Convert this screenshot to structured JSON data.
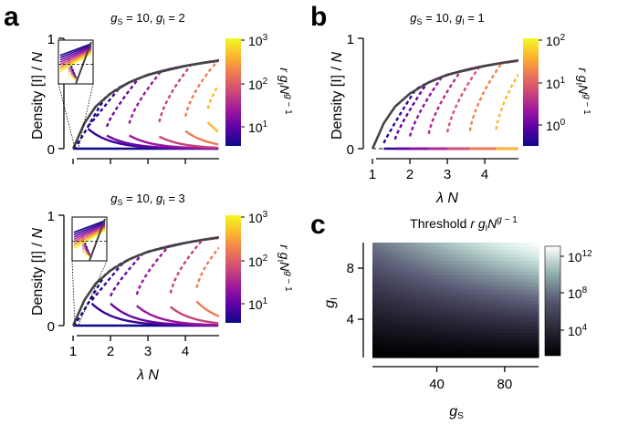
{
  "panel_labels": {
    "a": "a",
    "b": "b",
    "c": "c"
  },
  "shared": {
    "xlabel": "λ N",
    "ylabel": "Density [I] / N",
    "colorbar_label": "r g_I N^(g−1)",
    "colormap": [
      "#0d0887",
      "#5c01a6",
      "#9c179e",
      "#cc4778",
      "#ed7953",
      "#fdb42f",
      "#f0f921"
    ],
    "colors": {
      "threshold_curve": "#444444",
      "stable_line": "solid",
      "unstable_line": "dashed"
    }
  },
  "chart_data": [
    {
      "id": "a-top",
      "type": "line",
      "title": "g_S = 10, g_I = 2",
      "xlabel": "",
      "ylabel": "Density [I] / N",
      "xlim": [
        0.95,
        4.9
      ],
      "ylim": [
        0,
        1
      ],
      "xticks": [
        1,
        2,
        3,
        4
      ],
      "xtick_labels": [
        "",
        "",
        "",
        ""
      ],
      "yticks": [
        0,
        1
      ],
      "ytick_labels": [
        "0",
        "1"
      ],
      "colorbar": {
        "log": true,
        "range": [
          3,
          1000
        ],
        "ticks": [
          10,
          100,
          1000
        ],
        "tick_labels": [
          "10^1",
          "10^2",
          "10^3"
        ],
        "label": "r g_I N^(g−1)"
      },
      "threshold_curve": {
        "x": [
          1.0,
          1.3,
          1.6,
          2.0,
          2.5,
          3.0,
          3.5,
          4.0,
          4.5,
          4.9
        ],
        "y": [
          0.0,
          0.23,
          0.38,
          0.5,
          0.6,
          0.67,
          0.71,
          0.75,
          0.78,
          0.8
        ]
      },
      "series": [
        {
          "r": 3,
          "turning_point": [
            1.0,
            0.0
          ]
        },
        {
          "r": 5,
          "turning_point": [
            1.4,
            0.18
          ]
        },
        {
          "r": 10,
          "turning_point": [
            1.9,
            0.12
          ]
        },
        {
          "r": 20,
          "turning_point": [
            2.5,
            0.12
          ]
        },
        {
          "r": 50,
          "turning_point": [
            3.3,
            0.11
          ]
        },
        {
          "r": 150,
          "turning_point": [
            4.0,
            0.16
          ]
        },
        {
          "r": 400,
          "turning_point": [
            4.6,
            0.24
          ]
        },
        {
          "r": 1000,
          "turning_point": [
            5.2,
            0.3
          ]
        }
      ],
      "inset": {
        "shown": true,
        "xlim": [
          0.98,
          1.1
        ],
        "ylim": [
          0,
          0.15
        ]
      }
    },
    {
      "id": "a-bottom",
      "type": "line",
      "title": "g_S = 10, g_I = 3",
      "xlabel": "λ N",
      "ylabel": "Density [I] / N",
      "xlim": [
        0.95,
        4.9
      ],
      "ylim": [
        0,
        1
      ],
      "xticks": [
        1,
        2,
        3,
        4
      ],
      "xtick_labels": [
        "1",
        "2",
        "3",
        "4"
      ],
      "yticks": [
        0,
        1
      ],
      "ytick_labels": [
        "0",
        "1"
      ],
      "colorbar": {
        "log": true,
        "range": [
          3,
          1000
        ],
        "ticks": [
          10,
          100,
          1000
        ],
        "tick_labels": [
          "10^1",
          "10^2",
          "10^3"
        ],
        "label": "r g_I N^(g−1)"
      },
      "threshold_curve": {
        "x": [
          1.0,
          1.3,
          1.6,
          2.0,
          2.5,
          3.0,
          3.5,
          4.0,
          4.5,
          4.9
        ],
        "y": [
          0.0,
          0.23,
          0.38,
          0.5,
          0.6,
          0.67,
          0.71,
          0.75,
          0.78,
          0.8
        ]
      },
      "series": [
        {
          "r": 3,
          "turning_point": [
            1.0,
            0.0
          ]
        },
        {
          "r": 5,
          "turning_point": [
            1.5,
            0.2
          ]
        },
        {
          "r": 10,
          "turning_point": [
            2.0,
            0.2
          ]
        },
        {
          "r": 20,
          "turning_point": [
            2.7,
            0.18
          ]
        },
        {
          "r": 50,
          "turning_point": [
            3.6,
            0.17
          ]
        },
        {
          "r": 150,
          "turning_point": [
            4.3,
            0.22
          ]
        },
        {
          "r": 400,
          "turning_point": [
            5.0,
            0.28
          ]
        },
        {
          "r": 1000,
          "turning_point": [
            5.6,
            0.34
          ]
        }
      ],
      "inset": {
        "shown": true,
        "xlim": [
          0.98,
          1.1
        ],
        "ylim": [
          0,
          0.15
        ]
      }
    },
    {
      "id": "b",
      "type": "line",
      "title": "g_S = 10, g_I = 1",
      "xlabel": "λ N",
      "ylabel": "Density [I] / N",
      "xlim": [
        0.95,
        4.9
      ],
      "ylim": [
        0,
        1
      ],
      "xticks": [
        1,
        2,
        3,
        4
      ],
      "xtick_labels": [
        "1",
        "2",
        "3",
        "4"
      ],
      "yticks": [
        0,
        1
      ],
      "ytick_labels": [
        "0",
        "1"
      ],
      "colorbar": {
        "log": true,
        "range": [
          0.2,
          100
        ],
        "ticks": [
          1,
          10,
          100
        ],
        "tick_labels": [
          "10^0",
          "10^1",
          "10^2"
        ],
        "label": "r g_I N^(g−1)"
      },
      "threshold_curve": {
        "x": [
          1.0,
          1.3,
          1.6,
          2.0,
          2.5,
          3.0,
          3.5,
          4.0,
          4.5,
          4.9
        ],
        "y": [
          0.0,
          0.23,
          0.38,
          0.5,
          0.6,
          0.67,
          0.71,
          0.75,
          0.78,
          0.8
        ]
      },
      "series": [
        {
          "r": 0.3,
          "turning_point": [
            1.3,
            0.0
          ]
        },
        {
          "r": 0.6,
          "turning_point": [
            1.6,
            0.0
          ]
        },
        {
          "r": 1.2,
          "turning_point": [
            2.0,
            0.0
          ]
        },
        {
          "r": 2.5,
          "turning_point": [
            2.5,
            0.0
          ]
        },
        {
          "r": 6,
          "turning_point": [
            3.0,
            0.0
          ]
        },
        {
          "r": 15,
          "turning_point": [
            3.6,
            0.0
          ]
        },
        {
          "r": 40,
          "turning_point": [
            4.3,
            0.0
          ]
        },
        {
          "r": 100,
          "turning_point": [
            5.0,
            0.0
          ]
        }
      ]
    },
    {
      "id": "c",
      "type": "heatmap",
      "title": "Threshold r g_I N^(g−1)",
      "xlabel": "g_S",
      "ylabel": "g_I",
      "xlim": [
        2,
        100
      ],
      "ylim": [
        1,
        10
      ],
      "xticks": [
        40,
        80
      ],
      "xtick_labels": [
        "40",
        "80"
      ],
      "yticks": [
        4,
        8
      ],
      "ytick_labels": [
        "4",
        "8"
      ],
      "colorbar": {
        "log": true,
        "range": [
          1,
          1000000000000.0
        ],
        "ticks": [
          10000.0,
          100000000.0,
          1000000000000.0
        ],
        "tick_labels": [
          "10^4",
          "10^8",
          "10^12"
        ]
      },
      "colormap": [
        "#000000",
        "#1f1c2a",
        "#3d3a52",
        "#5d5e78",
        "#80909a",
        "#a8c3c0",
        "#d6ebe6",
        "#ffffff"
      ]
    }
  ]
}
